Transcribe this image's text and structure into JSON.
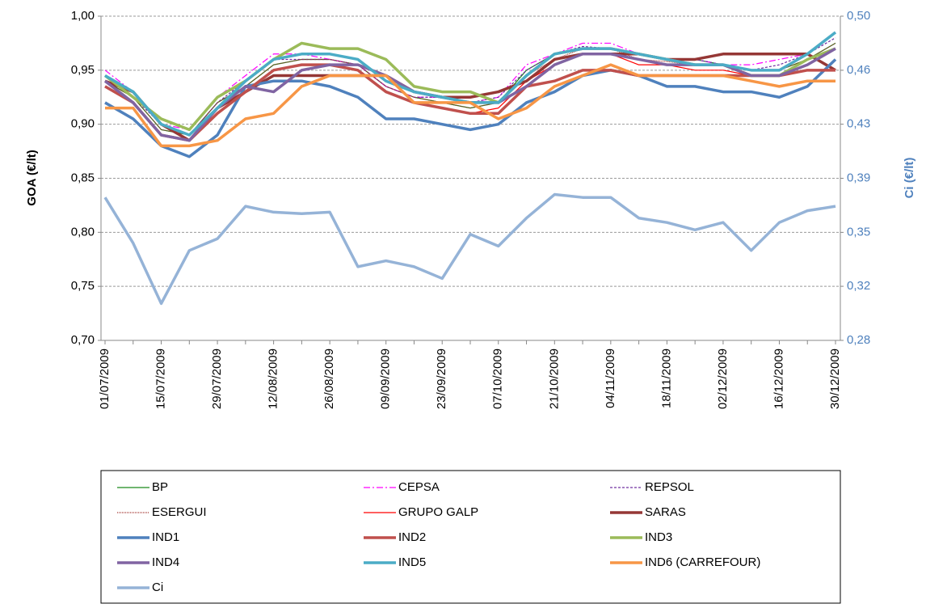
{
  "chart_data": {
    "type": "line",
    "y_label": "GOA (€/lt)",
    "y2_label": "Ci (€/lt)",
    "categories": [
      "01/07/2009",
      null,
      "15/07/2009",
      null,
      "29/07/2009",
      null,
      "12/08/2009",
      null,
      "26/08/2009",
      null,
      "09/09/2009",
      null,
      "23/09/2009",
      null,
      "07/10/2009",
      null,
      "21/10/2009",
      null,
      "04/11/2009",
      null,
      "18/11/2009",
      null,
      "02/12/2009",
      null,
      "16/12/2009",
      null,
      "30/12/2009"
    ],
    "ylim": [
      0.7,
      1.0
    ],
    "yticks": [
      {
        "value": 0.7,
        "label": "0,70"
      },
      {
        "value": 0.75,
        "label": "0,75"
      },
      {
        "value": 0.8,
        "label": "0,80"
      },
      {
        "value": 0.85,
        "label": "0,85"
      },
      {
        "value": 0.9,
        "label": "0,90"
      },
      {
        "value": 0.95,
        "label": "0,95"
      },
      {
        "value": 1.0,
        "label": "1,00"
      }
    ],
    "y2lim": [
      0.28,
      0.5
    ],
    "y2ticks": [
      {
        "value": 0.28,
        "label": "0,28"
      },
      {
        "value": 0.3167,
        "label": "0,32"
      },
      {
        "value": 0.3533,
        "label": "0,35"
      },
      {
        "value": 0.39,
        "label": "0,39"
      },
      {
        "value": 0.4267,
        "label": "0,43"
      },
      {
        "value": 0.4633,
        "label": "0,46"
      },
      {
        "value": 0.5,
        "label": "0,50"
      }
    ],
    "grid": true,
    "legend": "bottom",
    "series": [
      {
        "name": "BP",
        "color": "#1a8a1a",
        "width": 1.2,
        "dash": "",
        "values": [
          0.94,
          0.925,
          0.895,
          0.89,
          0.92,
          0.935,
          0.955,
          0.96,
          0.96,
          0.955,
          0.935,
          0.925,
          0.92,
          0.915,
          0.92,
          0.95,
          0.965,
          0.97,
          0.97,
          0.965,
          0.96,
          0.96,
          0.955,
          0.95,
          0.95,
          0.96,
          0.975
        ]
      },
      {
        "name": "CEPSA",
        "color": "#ff00ff",
        "width": 1.2,
        "dash": "8 3 2 3",
        "values": [
          0.95,
          0.93,
          0.9,
          0.895,
          0.925,
          0.945,
          0.965,
          0.965,
          0.96,
          0.955,
          0.935,
          0.925,
          0.925,
          0.92,
          0.925,
          0.955,
          0.965,
          0.975,
          0.975,
          0.965,
          0.96,
          0.96,
          0.955,
          0.955,
          0.96,
          0.965,
          0.985
        ]
      },
      {
        "name": "REPSOL",
        "color": "#7030a0",
        "width": 1.2,
        "dash": "3 2",
        "values": [
          0.945,
          0.925,
          0.9,
          0.89,
          0.92,
          0.94,
          0.96,
          0.96,
          0.96,
          0.955,
          0.935,
          0.925,
          0.925,
          0.92,
          0.925,
          0.95,
          0.965,
          0.972,
          0.97,
          0.965,
          0.96,
          0.96,
          0.955,
          0.95,
          0.955,
          0.965,
          0.98
        ]
      },
      {
        "name": "ESERGUI",
        "color": "#a0302c",
        "width": 1.2,
        "dash": "1 1",
        "values": [
          0.94,
          0.925,
          0.895,
          0.89,
          0.92,
          0.935,
          0.955,
          0.96,
          0.96,
          0.955,
          0.935,
          0.925,
          0.92,
          0.915,
          0.92,
          0.945,
          0.96,
          0.97,
          0.97,
          0.96,
          0.958,
          0.955,
          0.955,
          0.95,
          0.95,
          0.96,
          0.975
        ]
      },
      {
        "name": "GRUPO GALP",
        "color": "#ff0000",
        "width": 1.2,
        "dash": "",
        "values": [
          0.935,
          0.92,
          0.89,
          0.885,
          0.915,
          0.93,
          0.95,
          0.955,
          0.955,
          0.95,
          0.93,
          0.92,
          0.915,
          0.91,
          0.915,
          0.94,
          0.955,
          0.965,
          0.965,
          0.955,
          0.955,
          0.95,
          0.95,
          0.945,
          0.945,
          0.955,
          0.97
        ]
      },
      {
        "name": "SARAS",
        "color": "#953735",
        "width": 3.5,
        "dash": "",
        "values": [
          0.94,
          0.93,
          0.9,
          0.885,
          0.915,
          0.93,
          0.945,
          0.945,
          0.945,
          0.945,
          0.945,
          0.93,
          0.925,
          0.925,
          0.93,
          0.94,
          0.96,
          0.965,
          0.965,
          0.965,
          0.96,
          0.96,
          0.965,
          0.965,
          0.965,
          0.965,
          0.95
        ]
      },
      {
        "name": "IND1",
        "color": "#4f81bd",
        "width": 3.5,
        "dash": "",
        "values": [
          0.92,
          0.905,
          0.88,
          0.87,
          0.89,
          0.935,
          0.94,
          0.94,
          0.935,
          0.925,
          0.905,
          0.905,
          0.9,
          0.895,
          0.9,
          0.92,
          0.93,
          0.945,
          0.95,
          0.945,
          0.935,
          0.935,
          0.93,
          0.93,
          0.925,
          0.935,
          0.96
        ]
      },
      {
        "name": "IND2",
        "color": "#c0504d",
        "width": 3.5,
        "dash": "",
        "values": [
          0.935,
          0.92,
          0.89,
          0.885,
          0.91,
          0.93,
          0.95,
          0.955,
          0.955,
          0.95,
          0.93,
          0.92,
          0.915,
          0.91,
          0.91,
          0.935,
          0.94,
          0.95,
          0.95,
          0.945,
          0.945,
          0.945,
          0.945,
          0.945,
          0.945,
          0.95,
          0.95
        ]
      },
      {
        "name": "IND3",
        "color": "#9bbb59",
        "width": 3.5,
        "dash": "",
        "values": [
          0.945,
          0.925,
          0.905,
          0.895,
          0.925,
          0.94,
          0.96,
          0.975,
          0.97,
          0.97,
          0.96,
          0.935,
          0.93,
          0.93,
          0.92,
          0.945,
          0.965,
          0.97,
          0.97,
          0.965,
          0.96,
          0.955,
          0.955,
          0.945,
          0.945,
          0.96,
          0.97
        ]
      },
      {
        "name": "IND4",
        "color": "#8064a2",
        "width": 3.5,
        "dash": "",
        "values": [
          0.94,
          0.92,
          0.89,
          0.885,
          0.915,
          0.935,
          0.93,
          0.95,
          0.955,
          0.955,
          0.945,
          0.93,
          0.925,
          0.92,
          0.92,
          0.935,
          0.955,
          0.965,
          0.965,
          0.96,
          0.955,
          0.955,
          0.955,
          0.945,
          0.945,
          0.955,
          0.97
        ]
      },
      {
        "name": "IND5",
        "color": "#4bacc6",
        "width": 3.5,
        "dash": "",
        "values": [
          0.945,
          0.93,
          0.9,
          0.89,
          0.915,
          0.94,
          0.96,
          0.965,
          0.965,
          0.96,
          0.94,
          0.93,
          0.925,
          0.92,
          0.92,
          0.945,
          0.965,
          0.97,
          0.97,
          0.965,
          0.96,
          0.955,
          0.955,
          0.95,
          0.95,
          0.965,
          0.985
        ]
      },
      {
        "name": "IND6 (CARREFOUR)",
        "color": "#f79646",
        "width": 3.5,
        "dash": "",
        "values": [
          0.915,
          0.915,
          0.88,
          0.88,
          0.885,
          0.905,
          0.91,
          0.935,
          0.945,
          0.945,
          0.945,
          0.92,
          0.92,
          0.92,
          0.905,
          0.915,
          0.935,
          0.945,
          0.955,
          0.945,
          0.945,
          0.945,
          0.945,
          0.94,
          0.935,
          0.94,
          0.94
        ]
      },
      {
        "name": "Ci",
        "color": "#95b3d7",
        "width": 3.5,
        "dash": "",
        "axis": "y2",
        "values": [
          0.377,
          0.346,
          0.305,
          0.341,
          0.349,
          0.371,
          0.367,
          0.366,
          0.367,
          0.33,
          0.334,
          0.33,
          0.322,
          0.352,
          0.344,
          0.363,
          0.379,
          0.377,
          0.377,
          0.363,
          0.36,
          0.355,
          0.36,
          0.341,
          0.36,
          0.368,
          0.371
        ]
      }
    ]
  }
}
